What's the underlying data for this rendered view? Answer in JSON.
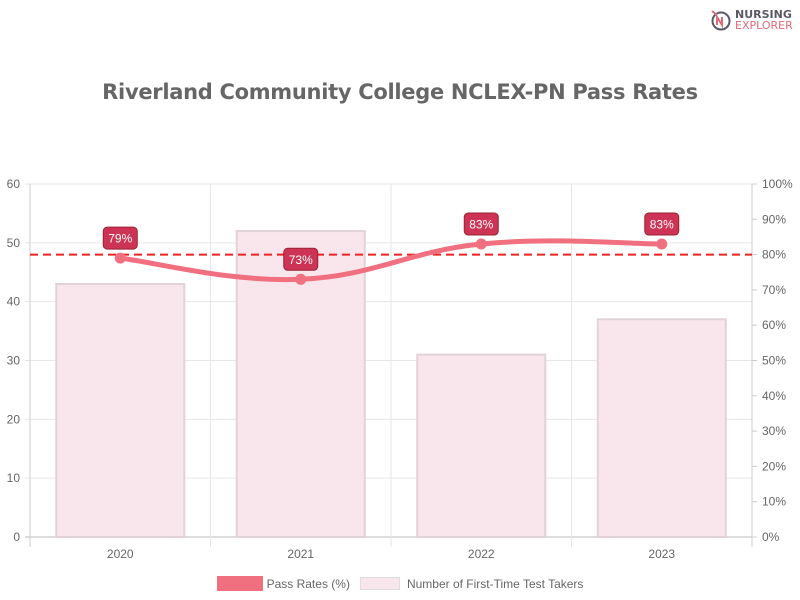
{
  "logo": {
    "line1": "NURSING",
    "line2": "EXPLORER"
  },
  "chart_data": {
    "type": "bar+line",
    "title": "Riverland Community College NCLEX-PN Pass Rates",
    "categories": [
      "2020",
      "2021",
      "2022",
      "2023"
    ],
    "series": [
      {
        "name": "Pass Rates (%)",
        "type": "line",
        "axis": "right",
        "values": [
          79,
          73,
          83,
          83
        ],
        "labels": [
          "79%",
          "73%",
          "83%",
          "83%"
        ],
        "color": "#f07080"
      },
      {
        "name": "Number of First-Time Test Takers",
        "type": "bar",
        "axis": "left",
        "values": [
          43,
          52,
          31,
          37
        ],
        "color": "#f9e6ec"
      }
    ],
    "y_left": {
      "range": [
        0,
        60
      ],
      "ticks": [
        "0",
        "10",
        "20",
        "30",
        "40",
        "50",
        "60"
      ]
    },
    "y_right": {
      "range": [
        0,
        100
      ],
      "ticks": [
        "0%",
        "10%",
        "20%",
        "30%",
        "40%",
        "50%",
        "60%",
        "70%",
        "80%",
        "90%",
        "100%"
      ]
    },
    "reference_line": {
      "value": 80,
      "axis": "right",
      "style": "dashed",
      "color": "#ee2222"
    },
    "grid": true,
    "legend": "bottom"
  }
}
